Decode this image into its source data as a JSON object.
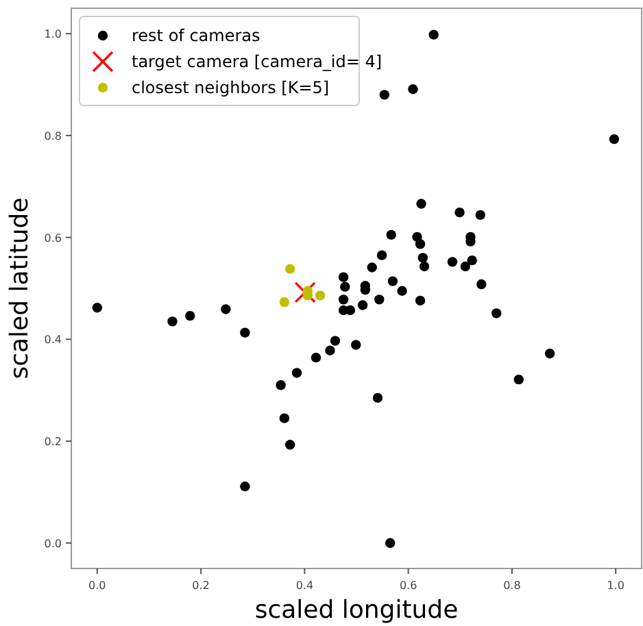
{
  "chart_data": {
    "type": "scatter",
    "xlabel": "scaled longitude",
    "ylabel": "scaled latitude",
    "xlim": [
      -0.05,
      1.05
    ],
    "ylim": [
      -0.05,
      1.05
    ],
    "xticks": [
      {
        "value": 0,
        "label": "0.0"
      },
      {
        "value": 0.2,
        "label": "0.2"
      },
      {
        "value": 0.4,
        "label": "0.4"
      },
      {
        "value": 0.6,
        "label": "0.6"
      },
      {
        "value": 0.8,
        "label": "0.8"
      },
      {
        "value": 1,
        "label": "1.0"
      }
    ],
    "yticks": [
      {
        "value": 0,
        "label": "0.0"
      },
      {
        "value": 0.2,
        "label": "0.2"
      },
      {
        "value": 0.4,
        "label": "0.4"
      },
      {
        "value": 0.6,
        "label": "0.6"
      },
      {
        "value": 0.8,
        "label": "0.8"
      },
      {
        "value": 1,
        "label": "1.0"
      }
    ],
    "grid": false,
    "legend": "top left",
    "series": [
      {
        "name": "rest of cameras",
        "color": "#000000",
        "marker": "circle",
        "x": [
          0,
          0.145,
          0.179,
          0.248,
          0.285,
          0.285,
          0.354,
          0.361,
          0.372,
          0.385,
          0.422,
          0.449,
          0.459,
          0.475,
          0.478,
          0.475,
          0.488,
          0.499,
          0.512,
          0.517,
          0.517,
          0.541,
          0.565,
          0.649,
          0.609,
          0.554,
          0.997,
          0.625,
          0.699,
          0.739,
          0.567,
          0.617,
          0.623,
          0.72,
          0.72,
          0.549,
          0.53,
          0.628,
          0.631,
          0.685,
          0.723,
          0.71,
          0.475,
          0.57,
          0.588,
          0.741,
          0.623,
          0.544,
          0.77,
          0.813,
          0.873
        ],
        "values": [
          0.462,
          0.435,
          0.446,
          0.459,
          0.413,
          0.111,
          0.31,
          0.245,
          0.193,
          0.334,
          0.364,
          0.378,
          0.397,
          0.478,
          0.503,
          0.457,
          0.457,
          0.389,
          0.467,
          0.505,
          0.497,
          0.285,
          0,
          0.998,
          0.891,
          0.88,
          0.793,
          0.666,
          0.649,
          0.644,
          0.605,
          0.601,
          0.587,
          0.601,
          0.592,
          0.565,
          0.541,
          0.56,
          0.543,
          0.552,
          0.555,
          0.543,
          0.522,
          0.514,
          0.495,
          0.508,
          0.476,
          0.478,
          0.451,
          0.321,
          0.372
        ]
      },
      {
        "name": "target camera [camera_id= 4]",
        "color": "#ff0000",
        "marker": "cross",
        "x": [
          0.401
        ],
        "values": [
          0.492
        ]
      },
      {
        "name": "closest neighbors [K=5]",
        "color": "#bfbf00",
        "marker": "circle",
        "x": [
          0.361,
          0.372,
          0.406,
          0.43,
          0.406
        ],
        "values": [
          0.473,
          0.538,
          0.486,
          0.486,
          0.495
        ]
      }
    ]
  }
}
